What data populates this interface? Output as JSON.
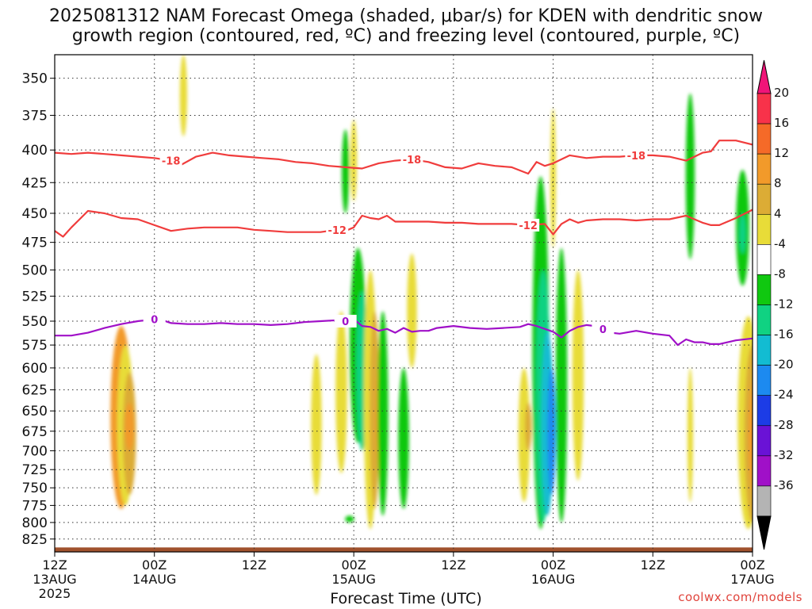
{
  "title": {
    "line1": "2025081312 NAM Forecast Omega (shaded, μbar/s) for KDEN with dendritic snow",
    "line2": "growth region (contoured, red, ºC) and freezing level (contoured, purple, ºC)"
  },
  "watermark": "coolwx.com/models",
  "chart_data": {
    "type": "contour",
    "xlabel": "Forecast Time (UTC)",
    "ylabel": "",
    "x_ticks": [
      {
        "hour": 0,
        "labels": [
          "12Z",
          "13AUG",
          "2025"
        ]
      },
      {
        "hour": 12,
        "labels": [
          "00Z",
          "14AUG"
        ]
      },
      {
        "hour": 24,
        "labels": [
          "12Z"
        ]
      },
      {
        "hour": 36,
        "labels": [
          "00Z",
          "15AUG"
        ]
      },
      {
        "hour": 48,
        "labels": [
          "12Z"
        ]
      },
      {
        "hour": 60,
        "labels": [
          "00Z",
          "16AUG"
        ]
      },
      {
        "hour": 72,
        "labels": [
          "12Z"
        ]
      },
      {
        "hour": 84,
        "labels": [
          "00Z",
          "17AUG"
        ]
      }
    ],
    "xlim": [
      0,
      84
    ],
    "y_ticks": [
      350,
      375,
      400,
      425,
      450,
      475,
      500,
      525,
      550,
      575,
      600,
      625,
      650,
      675,
      700,
      725,
      750,
      775,
      800,
      825
    ],
    "ylim": [
      335,
      845
    ],
    "y_scale": "log-pressure",
    "grid": true,
    "colorbar": {
      "labels": [
        "20",
        "16",
        "12",
        "8",
        "4",
        "-4",
        "-8",
        "-12",
        "-16",
        "-20",
        "-24",
        "-28",
        "-32",
        "-36"
      ],
      "colors": [
        "#f8324a",
        "#f56a28",
        "#f29a2a",
        "#dcac35",
        "#e8dc38",
        "#ffffff",
        "#10c810",
        "#10d282",
        "#12bcd2",
        "#1c8af0",
        "#1c3ce6",
        "#6a12d6",
        "#a010c8",
        "#b4b4b4"
      ],
      "top_arrow": "#f01478",
      "bottom_arrow": "#000000"
    },
    "series": [
      {
        "name": "-18",
        "color": "#f03c3c",
        "level_label": "-18",
        "x": [
          0,
          2,
          4,
          6,
          8,
          10,
          12,
          14,
          15,
          17,
          19,
          21,
          23,
          25,
          27,
          29,
          31,
          33,
          35,
          37,
          39,
          41,
          43,
          45,
          47,
          49,
          51,
          53,
          55,
          57,
          58,
          59,
          60,
          62,
          64,
          66,
          68,
          70,
          72,
          74,
          76,
          78,
          79,
          80,
          82,
          84
        ],
        "y": [
          402,
          403,
          402,
          403,
          404,
          405,
          406,
          408,
          412,
          405,
          402,
          404,
          405,
          406,
          407,
          409,
          410,
          412,
          413,
          414,
          410,
          408,
          407,
          409,
          413,
          414,
          410,
          412,
          413,
          418,
          409,
          412,
          410,
          404,
          406,
          405,
          405,
          404,
          404,
          405,
          408,
          402,
          401,
          393,
          393,
          396
        ]
      },
      {
        "name": "-12",
        "color": "#f03c3c",
        "level_label": "-12",
        "x": [
          0,
          1,
          2,
          3,
          4,
          6,
          8,
          10,
          12,
          14,
          16,
          18,
          20,
          22,
          24,
          26,
          28,
          30,
          32,
          33,
          34,
          35,
          36,
          37,
          38,
          39,
          40,
          41,
          43,
          45,
          47,
          49,
          51,
          53,
          55,
          57,
          59,
          60,
          61,
          62,
          63,
          64,
          66,
          68,
          70,
          72,
          74,
          76,
          77,
          78,
          79,
          80,
          82,
          84
        ],
        "y": [
          465,
          470,
          462,
          455,
          448,
          450,
          454,
          455,
          460,
          465,
          463,
          462,
          462,
          462,
          464,
          465,
          466,
          466,
          466,
          465,
          464,
          465,
          462,
          452,
          454,
          455,
          452,
          457,
          457,
          457,
          458,
          458,
          459,
          459,
          459,
          460,
          459,
          468,
          459,
          455,
          458,
          456,
          455,
          455,
          456,
          455,
          455,
          452,
          455,
          458,
          460,
          460,
          454,
          447
        ]
      },
      {
        "name": "0",
        "color": "#a010c8",
        "level_label": "0",
        "x": [
          0,
          2,
          4,
          6,
          8,
          10,
          11,
          12,
          13,
          14,
          16,
          18,
          20,
          22,
          24,
          26,
          28,
          30,
          32,
          34,
          35,
          36,
          37,
          38,
          39,
          40,
          41,
          42,
          43,
          44,
          45,
          46,
          48,
          50,
          52,
          54,
          56,
          57,
          58,
          59,
          60,
          61,
          62,
          63,
          64,
          65,
          66,
          67,
          68,
          70,
          72,
          74,
          75,
          76,
          77,
          78,
          79,
          80,
          81,
          82,
          84
        ],
        "y": [
          565,
          565,
          562,
          557,
          553,
          550,
          549,
          548,
          549,
          552,
          553,
          553,
          552,
          553,
          553,
          554,
          553,
          551,
          550,
          549,
          550,
          548,
          555,
          556,
          560,
          558,
          562,
          557,
          561,
          560,
          560,
          557,
          555,
          557,
          558,
          557,
          556,
          553,
          555,
          558,
          561,
          567,
          560,
          556,
          554,
          555,
          558,
          562,
          563,
          560,
          563,
          565,
          575,
          569,
          572,
          572,
          574,
          574,
          572,
          570,
          568
        ]
      }
    ],
    "omega_cells": [
      {
        "x": 8,
        "p0": 555,
        "p1": 780,
        "w": 2.2,
        "level": 12
      },
      {
        "x": 8.5,
        "p0": 575,
        "p1": 775,
        "w": 1.6,
        "level": 4
      },
      {
        "x": 9,
        "p0": 605,
        "p1": 760,
        "w": 1.2,
        "level": 8
      },
      {
        "x": 9,
        "p0": 640,
        "p1": 700,
        "w": 0.7,
        "level": 12
      },
      {
        "x": 15.5,
        "p0": 335,
        "p1": 390,
        "w": 0.5,
        "level": 4
      },
      {
        "x": 31.5,
        "p0": 585,
        "p1": 760,
        "w": 0.9,
        "level": 4
      },
      {
        "x": 34.5,
        "p0": 540,
        "p1": 730,
        "w": 1.0,
        "level": 4
      },
      {
        "x": 35,
        "p0": 385,
        "p1": 450,
        "w": 0.5,
        "level": -4
      },
      {
        "x": 36,
        "p0": 378,
        "p1": 440,
        "w": 0.4,
        "level": 4
      },
      {
        "x": 36.5,
        "p0": 480,
        "p1": 690,
        "w": 1.6,
        "level": -4
      },
      {
        "x": 37,
        "p0": 520,
        "p1": 700,
        "w": 1.0,
        "level": -8
      },
      {
        "x": 38,
        "p0": 500,
        "p1": 810,
        "w": 1.2,
        "level": 4
      },
      {
        "x": 38.5,
        "p0": 540,
        "p1": 780,
        "w": 0.8,
        "level": 8
      },
      {
        "x": 39,
        "p0": 600,
        "p1": 720,
        "w": 0.4,
        "level": 12
      },
      {
        "x": 39.5,
        "p0": 540,
        "p1": 790,
        "w": 0.9,
        "level": -4
      },
      {
        "x": 42,
        "p0": 600,
        "p1": 780,
        "w": 0.9,
        "level": -4
      },
      {
        "x": 43,
        "p0": 485,
        "p1": 600,
        "w": 0.8,
        "level": 4
      },
      {
        "x": 35.5,
        "p0": 790,
        "p1": 800,
        "w": 0.7,
        "level": -4
      },
      {
        "x": 56.5,
        "p0": 600,
        "p1": 770,
        "w": 1.0,
        "level": 4
      },
      {
        "x": 57,
        "p0": 640,
        "p1": 700,
        "w": 0.4,
        "level": 8
      },
      {
        "x": 58.5,
        "p0": 420,
        "p1": 810,
        "w": 1.6,
        "level": -4
      },
      {
        "x": 58.8,
        "p0": 500,
        "p1": 800,
        "w": 1.4,
        "level": -8
      },
      {
        "x": 59.3,
        "p0": 560,
        "p1": 790,
        "w": 1.1,
        "level": -12
      },
      {
        "x": 59.8,
        "p0": 600,
        "p1": 760,
        "w": 0.6,
        "level": -16
      },
      {
        "x": 60,
        "p0": 370,
        "p1": 480,
        "w": 0.3,
        "level": 4
      },
      {
        "x": 61,
        "p0": 480,
        "p1": 800,
        "w": 1.0,
        "level": -4
      },
      {
        "x": 63,
        "p0": 500,
        "p1": 740,
        "w": 1.0,
        "level": 4
      },
      {
        "x": 76.5,
        "p0": 360,
        "p1": 490,
        "w": 0.7,
        "level": -4
      },
      {
        "x": 76.5,
        "p0": 600,
        "p1": 770,
        "w": 0.3,
        "level": 4
      },
      {
        "x": 82.8,
        "p0": 415,
        "p1": 515,
        "w": 1.2,
        "level": -4
      },
      {
        "x": 82.8,
        "p0": 450,
        "p1": 485,
        "w": 0.4,
        "level": -8
      },
      {
        "x": 83.5,
        "p0": 545,
        "p1": 810,
        "w": 2.2,
        "level": 4
      },
      {
        "x": 84,
        "p0": 575,
        "p1": 800,
        "w": 1.6,
        "level": 8
      },
      {
        "x": 84.3,
        "p0": 610,
        "p1": 760,
        "w": 1.1,
        "level": 12
      },
      {
        "x": 84.6,
        "p0": 640,
        "p1": 730,
        "w": 0.6,
        "level": 16
      }
    ],
    "terrain_pressure": 838
  }
}
